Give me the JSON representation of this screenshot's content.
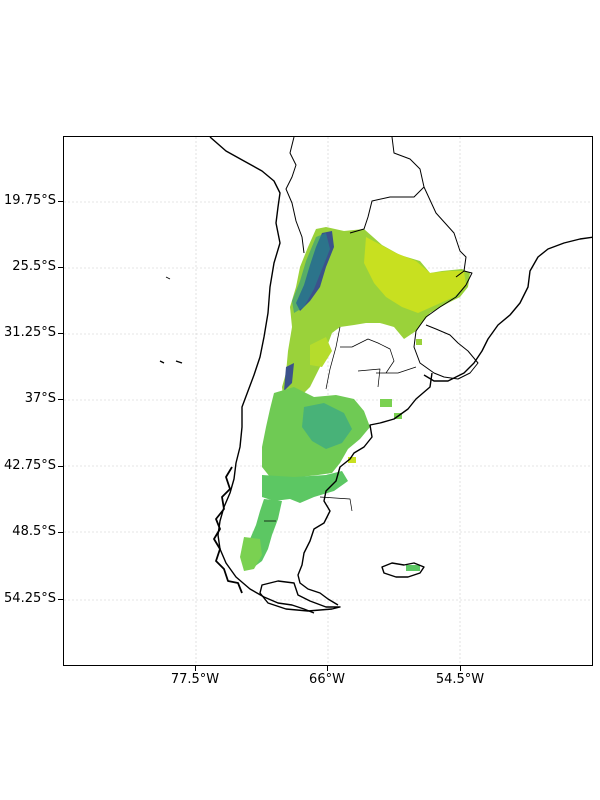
{
  "map": {
    "y_ticks": [
      "19.75°S",
      "25.5°S",
      "31.25°S",
      "37°S",
      "42.75°S",
      "48.5°S",
      "54.25°S"
    ],
    "x_ticks": [
      "77.5°W",
      "66°W",
      "54.5°W"
    ],
    "gridlines": true,
    "colors": {
      "low": "#3b528b",
      "mid_low": "#21908d",
      "mid": "#3cbc74",
      "mid_high": "#7ad151",
      "high": "#c8e020",
      "outline": "#000000",
      "grid": "#cccccc"
    }
  }
}
